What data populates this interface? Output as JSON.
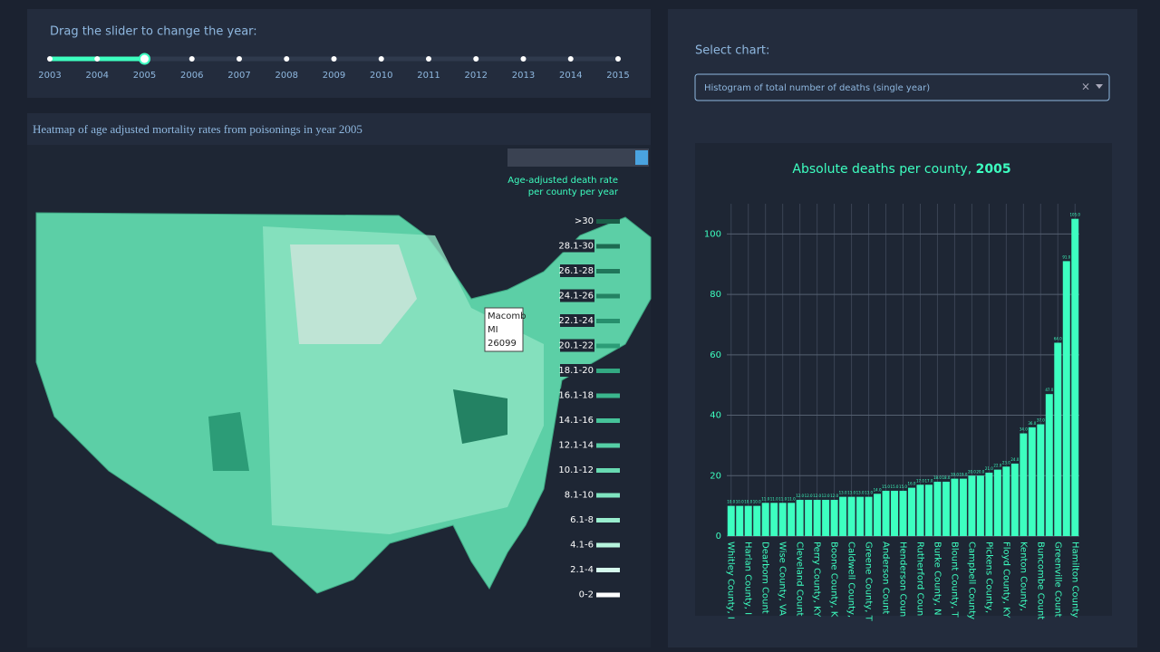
{
  "slider": {
    "label": "Drag the slider to change the year:",
    "years": [
      "2003",
      "2004",
      "2005",
      "2006",
      "2007",
      "2008",
      "2009",
      "2010",
      "2011",
      "2012",
      "2013",
      "2014",
      "2015"
    ],
    "selected": 2
  },
  "map": {
    "title": "Heatmap of age adjusted mortality rates from poisonings in year 2005",
    "legend_title": [
      "Age-adjusted death rate",
      "per county per year"
    ],
    "legend": [
      {
        "label": ">30",
        "color": "#1a5e48"
      },
      {
        "label": "28.1-30",
        "color": "#1d6a51"
      },
      {
        "label": "26.1-28",
        "color": "#20765a"
      },
      {
        "label": "24.1-26",
        "color": "#238263"
      },
      {
        "label": "22.1-24",
        "color": "#278f6d"
      },
      {
        "label": "20.1-22",
        "color": "#2c9c77"
      },
      {
        "label": "18.1-20",
        "color": "#33a982"
      },
      {
        "label": "16.1-18",
        "color": "#3bb68d"
      },
      {
        "label": "14.1-16",
        "color": "#46c399"
      },
      {
        "label": "12.1-14",
        "color": "#55cfa5"
      },
      {
        "label": "10.1-12",
        "color": "#68dab2"
      },
      {
        "label": "8.1-10",
        "color": "#7fe4c0"
      },
      {
        "label": "6.1-8",
        "color": "#99edce"
      },
      {
        "label": "4.1-6",
        "color": "#b6f4dd"
      },
      {
        "label": "2.1-4",
        "color": "#d5f9ec"
      },
      {
        "label": "0-2",
        "color": "#ffffff"
      }
    ],
    "tooltip": [
      "Macomb",
      "MI",
      "26099"
    ]
  },
  "selector": {
    "label": "Select chart:",
    "value": "Histogram of total number of deaths (single year)",
    "clear": "×"
  },
  "chart_data": {
    "type": "bar",
    "title": "Absolute deaths per county, ",
    "title_year": "2005",
    "color": "#3dffc0",
    "categories": [
      "Whitley County, I",
      null,
      "Harlan County, I",
      null,
      "Dearborn Count",
      null,
      "Wise County, VA",
      null,
      "Cleveland Count",
      null,
      "Perry County, KY",
      null,
      "Boone County, K",
      null,
      "Caldwell County,",
      null,
      "Greene County, T",
      null,
      "Anderson Count",
      null,
      "Henderson Coun",
      null,
      "Rutherford Coun",
      null,
      "Burke County, N",
      null,
      "Blount County, T",
      null,
      "Campbell County",
      null,
      "Pickens County,",
      null,
      "Floyd County, KY",
      null,
      "Kenton County,",
      null,
      "Buncombe Count",
      null,
      "Greenville Count",
      null,
      "Hamilton County"
    ],
    "values": [
      10,
      10,
      10,
      10,
      11,
      11,
      11,
      11,
      12,
      12,
      12,
      12,
      12,
      13,
      13,
      13,
      13,
      14,
      15,
      15,
      15,
      16,
      17,
      17,
      18,
      18,
      19,
      19,
      20,
      20,
      21,
      22,
      23,
      24,
      34,
      36,
      37,
      47,
      64,
      91,
      105
    ],
    "value_labels": [
      "10.0",
      "10.0",
      "10.0",
      "10.0",
      "11.0",
      "11.0",
      "11.0",
      "11.0",
      "12.0",
      "12.0",
      "12.0",
      "12.0",
      "12.0",
      "13.0",
      "13.0",
      "13.0",
      "13.0",
      "14.0",
      "15.0",
      "15.0",
      "15.0",
      "16.0",
      "17.0",
      "17.0",
      "18.0",
      "18.0",
      "19.0",
      "19.0",
      "20.0",
      "20.0",
      "21.0",
      "22.0",
      "23.0",
      "24.0",
      "34.0",
      "36.0",
      "37.0",
      "47.0",
      "64.0",
      "91.0",
      "105.0"
    ],
    "ylim": [
      0,
      110
    ],
    "yticks": [
      0,
      20,
      40,
      60,
      80,
      100
    ],
    "grid": true
  }
}
